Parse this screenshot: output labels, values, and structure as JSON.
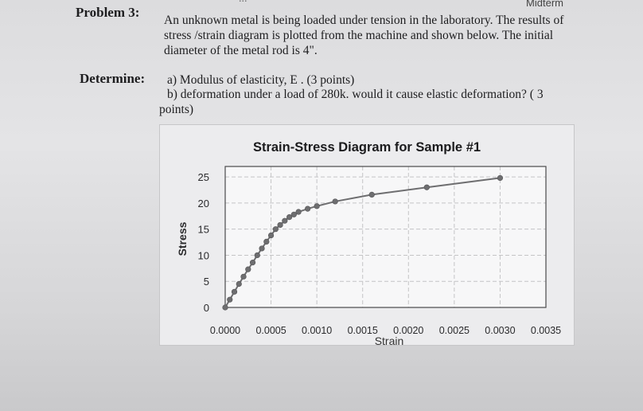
{
  "header": {
    "course_fragment": "...",
    "exam_label": "Midterm"
  },
  "problem": {
    "label": "Problem 3:",
    "lines": [
      "An unknown metal is being loaded under tension in the laboratory.  The results of",
      "stress /strain diagram is plotted from the machine and shown below. The initial",
      "diameter of the metal rod is 4\"."
    ]
  },
  "determine": {
    "label": "Determine:",
    "lines": [
      "a) Modulus of elasticity, E . (3 points)",
      "b) deformation under a load of 280k. would it cause elastic deformation? ( 3",
      "points)"
    ]
  },
  "chart_data": {
    "type": "line",
    "title": "Strain-Stress Diagram for Sample #1",
    "xlabel": "Strain",
    "ylabel": "Stress",
    "x_ticks": [
      "0.0000",
      "0.0005",
      "0.0010",
      "0.0015",
      "0.0020",
      "0.0025",
      "0.0030",
      "0.0035"
    ],
    "y_ticks": [
      "0",
      "5",
      "10",
      "15",
      "20",
      "25"
    ],
    "xlim": [
      0,
      0.0035
    ],
    "ylim": [
      0,
      27
    ],
    "grid": true,
    "legend": "none",
    "series": [
      {
        "color": "#6e6e70",
        "x": [
          0.0,
          5e-05,
          0.0001,
          0.00015,
          0.0002,
          0.00025,
          0.0003,
          0.00035,
          0.0004,
          0.00045,
          0.0005,
          0.00055,
          0.0006,
          0.00065,
          0.0007,
          0.00075,
          0.0008,
          0.0009,
          0.001,
          0.0012,
          0.0016,
          0.0022,
          0.003
        ],
        "y": [
          0.0,
          1.5,
          3.0,
          4.5,
          5.9,
          7.3,
          8.6,
          10.0,
          11.3,
          12.6,
          13.8,
          15.0,
          15.8,
          16.6,
          17.3,
          17.8,
          18.3,
          18.9,
          19.4,
          20.3,
          21.6,
          23.0,
          24.8
        ]
      }
    ]
  }
}
